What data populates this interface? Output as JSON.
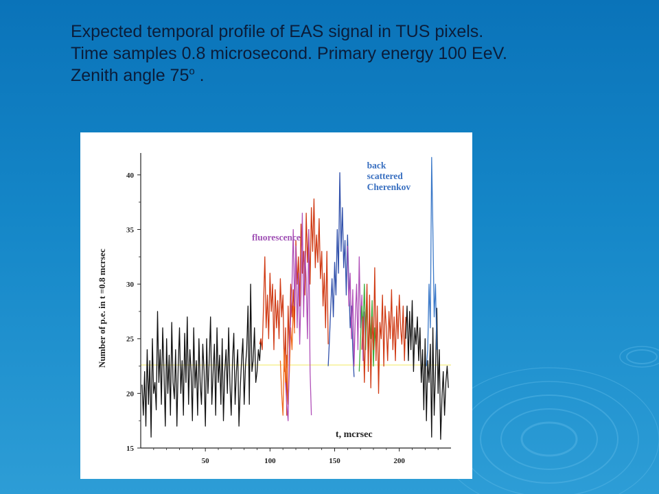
{
  "slide": {
    "title_lines": [
      "Expected temporal profile of EAS signal in TUS pixels.",
      "Time samples 0.8 microsecond. Primary energy 100 EeV.",
      "Zenith angle 75"
    ],
    "title_sup": "o",
    "title_tail": " ."
  },
  "colors": {
    "background": "#0a73b9",
    "title_text": "#0b1d3a",
    "noise": "#111111",
    "shower_red": "#d03a14",
    "shower_orange": "#ef6a1c",
    "shower_purple": "#b04fb8",
    "shower_blue": "#2f4faa",
    "shower_green": "#3aaa3a",
    "cherenkov_blue": "#3a78c8",
    "fluorescence_label": "#a052b5",
    "cherenkov_label": "#3a70c0",
    "baseline": "#f3ee80"
  },
  "chart_data": {
    "type": "line",
    "title": "",
    "xlabel": "t, mcrsec",
    "ylabel": "Number of p.e. in t =0.8 mcrsec",
    "xlim": [
      0,
      240
    ],
    "ylim": [
      15,
      42
    ],
    "x_ticks": [
      50,
      100,
      150,
      200
    ],
    "y_ticks": [
      15,
      20,
      25,
      30,
      35,
      40
    ],
    "baseline_y": 22.6,
    "grid": false,
    "legend": "none",
    "annotations": [
      {
        "text": "fluorescence",
        "x": 86,
        "y": 34,
        "color": "fluorescence_label"
      },
      {
        "text": "back",
        "x": 175,
        "y": 40.6,
        "color": "cherenkov_label"
      },
      {
        "text": "scattered",
        "x": 175,
        "y": 39.6,
        "color": "cherenkov_label"
      },
      {
        "text": "Cherenkov",
        "x": 175,
        "y": 38.6,
        "color": "cherenkov_label"
      }
    ],
    "series": [
      {
        "color": "noise",
        "x": [
          1,
          2,
          3,
          4,
          5,
          6,
          7,
          8,
          9,
          10,
          11,
          12,
          13,
          14,
          15,
          16,
          17,
          18,
          19,
          20,
          21,
          22,
          23,
          24,
          25,
          26,
          27,
          28,
          29,
          30,
          31,
          32,
          33,
          34,
          35,
          36,
          37,
          38,
          39,
          40,
          41,
          42,
          43,
          44,
          45,
          46,
          47,
          48,
          49,
          50,
          51,
          52,
          53,
          54,
          55,
          56,
          57,
          58,
          59,
          60,
          61,
          62,
          63,
          64,
          65,
          66,
          67,
          68,
          69,
          70,
          71,
          72,
          73,
          74,
          75,
          76,
          77,
          78,
          79,
          80,
          81,
          82,
          83,
          84,
          85,
          86,
          87,
          88,
          89,
          90,
          91,
          92,
          93
        ],
        "y": [
          20.8,
          18,
          22,
          17,
          24,
          19,
          23,
          16,
          25,
          20,
          21,
          18.5,
          27.5,
          21,
          24,
          19,
          26,
          22,
          17,
          25,
          20,
          23.5,
          18,
          26.5,
          21,
          19.5,
          24,
          17,
          22.5,
          26,
          20,
          23,
          18,
          25.5,
          21,
          27,
          19,
          24,
          22,
          17.5,
          26,
          20.5,
          23,
          18,
          25,
          21,
          19,
          24.5,
          22,
          17,
          25,
          20,
          23,
          27,
          19,
          22,
          24.5,
          18,
          26,
          21,
          23.5,
          19,
          25,
          17.5,
          22,
          24,
          20,
          26,
          21,
          18,
          23,
          25.5,
          19,
          22,
          24,
          17,
          20.5,
          23,
          25,
          19,
          22.5,
          24,
          28,
          19,
          30,
          22,
          23,
          26,
          21,
          22,
          24,
          23,
          25
        ]
      },
      {
        "color": "shower_red",
        "x": [
          92,
          93,
          94,
          95,
          96,
          97,
          98,
          99,
          100,
          101,
          102,
          103,
          104,
          105,
          106,
          107,
          108,
          109,
          110,
          111,
          112,
          113,
          114,
          115,
          116,
          117,
          118,
          119,
          120,
          121,
          122,
          123,
          124,
          125,
          126,
          127,
          128,
          129,
          130,
          131,
          132,
          133,
          134,
          135,
          136,
          137,
          138,
          139,
          140,
          141,
          142,
          143,
          144,
          145
        ],
        "y": [
          24.5,
          25,
          24,
          28,
          32.5,
          26,
          29,
          25,
          31,
          27.5,
          30,
          24,
          29.5,
          26,
          28.5,
          25,
          30.5,
          27,
          29,
          22,
          26,
          18,
          28,
          24,
          30,
          27,
          29.5,
          26,
          34,
          30,
          32.5,
          28,
          35.5,
          31,
          33,
          29,
          36.5,
          32,
          35,
          30,
          37,
          33,
          37.8,
          31.5,
          34.5,
          32,
          36,
          30.5,
          33,
          28,
          31,
          26,
          33,
          24.5
        ]
      },
      {
        "color": "shower_orange",
        "x": [
          108,
          109,
          110,
          111,
          112,
          113,
          114,
          115,
          116,
          117,
          118,
          119
        ],
        "y": [
          23,
          20,
          18,
          24,
          21,
          23.5,
          19,
          22,
          26,
          24,
          28,
          25.5
        ]
      },
      {
        "color": "shower_purple",
        "x": [
          112,
          113,
          114,
          115,
          116,
          117,
          118,
          119,
          120,
          121,
          122,
          123,
          124,
          125,
          126,
          127,
          128,
          129,
          130,
          131,
          132
        ],
        "y": [
          21,
          19,
          17.5,
          24,
          27,
          30,
          35,
          28,
          33.5,
          26,
          31,
          24.5,
          29,
          36.5,
          27,
          33,
          30.5,
          25,
          35,
          22,
          18
        ]
      },
      {
        "color": "shower_blue",
        "x": [
          145,
          146,
          147,
          148,
          149,
          150,
          151,
          152,
          153,
          154,
          155,
          156,
          157,
          158,
          159,
          160,
          161,
          162,
          163,
          164,
          165
        ],
        "y": [
          22.5,
          25,
          28,
          30.5,
          27,
          32,
          29,
          35,
          31,
          40.2,
          33,
          37,
          31.5,
          34,
          29,
          34.5,
          30,
          26,
          28,
          24,
          21.5
        ]
      },
      {
        "color": "shower_purple",
        "x": [
          160,
          161,
          162,
          163,
          164,
          165,
          166,
          167,
          168,
          169,
          170,
          171,
          172,
          173
        ],
        "y": [
          33.5,
          28,
          31,
          25,
          29.5,
          22.5,
          27,
          30,
          24,
          32.5,
          26,
          29,
          23,
          27.5
        ]
      },
      {
        "color": "shower_green",
        "x": [
          169,
          170,
          171,
          172,
          173,
          174,
          175,
          176,
          177,
          178,
          179,
          180,
          181,
          182
        ],
        "y": [
          22,
          25,
          28,
          26,
          30,
          24,
          29,
          23,
          27,
          25,
          28.5,
          22.5,
          26,
          24
        ]
      },
      {
        "color": "shower_red",
        "x": [
          171,
          172,
          173,
          174,
          175,
          176,
          177,
          178,
          179,
          180,
          181,
          182,
          183,
          184,
          185,
          186,
          187,
          188,
          189,
          190,
          191,
          192,
          193,
          194,
          195,
          196,
          197,
          198,
          199,
          200,
          201,
          202,
          203,
          204,
          205
        ],
        "y": [
          24,
          27,
          21,
          26,
          30,
          22,
          29,
          20.5,
          27,
          24,
          31.5,
          23,
          28,
          20,
          26.5,
          25,
          29,
          22.5,
          28,
          26,
          23,
          27.5,
          25,
          29.5,
          24,
          27,
          23,
          28,
          25,
          29,
          26,
          24.5,
          28,
          23,
          27
        ]
      },
      {
        "color": "noise",
        "x": [
          205,
          206,
          207,
          208,
          209,
          210,
          211,
          212,
          213,
          214,
          215,
          216,
          217,
          218,
          219,
          220,
          221,
          222,
          223,
          224,
          225,
          226,
          227,
          228,
          229,
          230,
          231,
          232,
          233,
          234,
          235,
          236,
          237,
          238
        ],
        "y": [
          25,
          28,
          23,
          27.5,
          24,
          28.5,
          22,
          26,
          24.5,
          27,
          23,
          26,
          21,
          24,
          18.5,
          25,
          17.5,
          23,
          21,
          24.5,
          16,
          26,
          18,
          22,
          27.8,
          20,
          24,
          15.8,
          19.5,
          22,
          18,
          21,
          22.5,
          20.5
        ]
      },
      {
        "color": "cherenkov_blue",
        "x": [
          221,
          222,
          223,
          224,
          225,
          226,
          227,
          228,
          229
        ],
        "y": [
          22.5,
          24,
          30,
          26,
          41.6,
          35,
          27,
          30,
          24
        ]
      }
    ]
  }
}
